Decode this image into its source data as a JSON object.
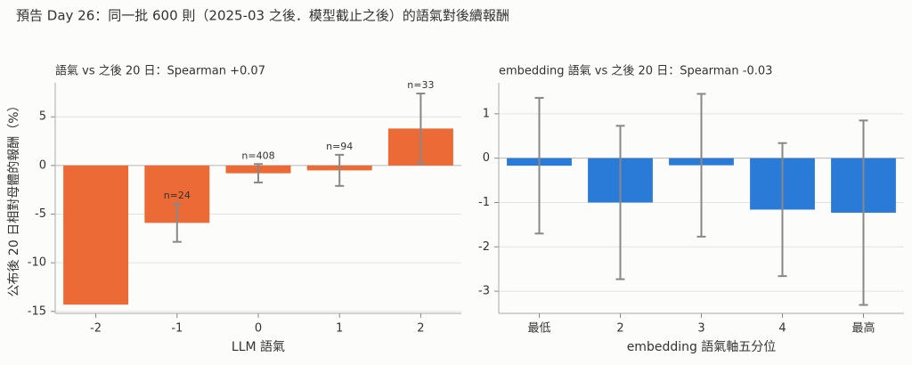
{
  "title": "預告 Day 26：同一批 600 則（2025-03 之後．模型截止之後）的語氣對後續報酬",
  "chart_data": [
    {
      "type": "bar",
      "title": "語氣 vs 之後 20 日：Spearman +0.07",
      "x_label": "LLM 語氣",
      "y_label": "公布後 20 日相對母體的報酬（%）",
      "categories": [
        "-2",
        "-1",
        "0",
        "1",
        "2"
      ],
      "values": [
        -14.3,
        -5.9,
        -0.8,
        -0.5,
        3.8
      ],
      "errors": [
        null,
        1.95,
        0.95,
        1.6,
        3.6
      ],
      "annotations": [
        null,
        "n=24",
        "n=408",
        "n=94",
        "n=33"
      ],
      "color": "#ec6a35",
      "ylim": [
        -15.2,
        8.5
      ],
      "yticks": [
        -15,
        -10,
        -5,
        0,
        5
      ],
      "grid": true
    },
    {
      "type": "bar",
      "title": "embedding 語氣 vs 之後 20 日：Spearman -0.03",
      "x_label": "embedding 語氣軸五分位",
      "categories": [
        "最低",
        "2",
        "3",
        "4",
        "最高"
      ],
      "values": [
        -0.17,
        -1.0,
        -0.16,
        -1.16,
        -1.23
      ],
      "errors": [
        1.53,
        1.73,
        1.61,
        1.5,
        2.08
      ],
      "color": "#2a7bd8",
      "ylim": [
        -3.5,
        1.7
      ],
      "yticks": [
        -3,
        -2,
        -1,
        0,
        1
      ],
      "grid": true
    }
  ]
}
